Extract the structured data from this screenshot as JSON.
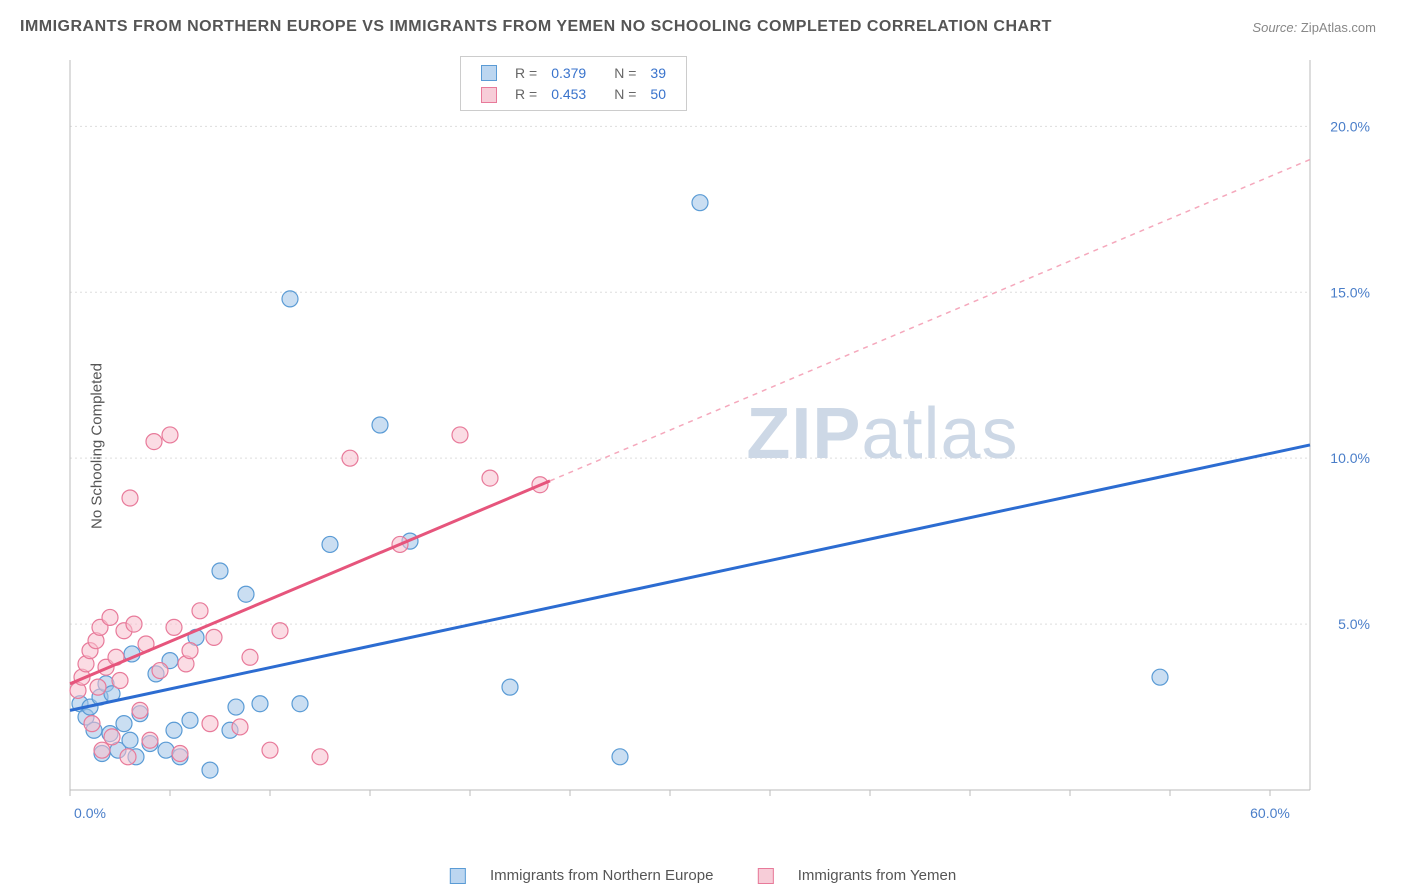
{
  "title": "IMMIGRANTS FROM NORTHERN EUROPE VS IMMIGRANTS FROM YEMEN NO SCHOOLING COMPLETED CORRELATION CHART",
  "source_label": "Source:",
  "source_value": "ZipAtlas.com",
  "y_axis_label": "No Schooling Completed",
  "watermark_a": "ZIP",
  "watermark_b": "atlas",
  "chart": {
    "type": "scatter",
    "xlim": [
      0,
      62
    ],
    "ylim": [
      0,
      22
    ],
    "x_ticks": [
      0,
      60
    ],
    "x_tick_labels": [
      "0.0%",
      "60.0%"
    ],
    "y_ticks": [
      5,
      10,
      15,
      20
    ],
    "y_tick_labels": [
      "5.0%",
      "10.0%",
      "15.0%",
      "20.0%"
    ],
    "grid_color": "#dddddd",
    "axis_color": "#bbbbbb",
    "background_color": "#ffffff",
    "tick_label_color": "#4a7ec9",
    "point_radius": 8,
    "series": [
      {
        "name": "Immigrants from Northern Europe",
        "point_fill": "#9ec3e8",
        "point_stroke": "#5a9bd5",
        "trend_color": "#2c6cd1",
        "R": "0.379",
        "N": "39",
        "trend": {
          "x1": 0,
          "y1": 2.4,
          "x2": 62,
          "y2": 10.4,
          "solid_until_x": 62
        },
        "points": [
          [
            0.5,
            2.6
          ],
          [
            0.8,
            2.2
          ],
          [
            1.0,
            2.5
          ],
          [
            1.2,
            1.8
          ],
          [
            1.5,
            2.8
          ],
          [
            1.6,
            1.1
          ],
          [
            1.8,
            3.2
          ],
          [
            2.0,
            1.7
          ],
          [
            2.1,
            2.9
          ],
          [
            2.4,
            1.2
          ],
          [
            2.7,
            2.0
          ],
          [
            3.0,
            1.5
          ],
          [
            3.1,
            4.1
          ],
          [
            3.3,
            1.0
          ],
          [
            3.5,
            2.3
          ],
          [
            4.0,
            1.4
          ],
          [
            4.3,
            3.5
          ],
          [
            4.8,
            1.2
          ],
          [
            5.0,
            3.9
          ],
          [
            5.2,
            1.8
          ],
          [
            5.5,
            1.0
          ],
          [
            6.0,
            2.1
          ],
          [
            6.3,
            4.6
          ],
          [
            7.0,
            0.6
          ],
          [
            7.5,
            6.6
          ],
          [
            8.0,
            1.8
          ],
          [
            8.3,
            2.5
          ],
          [
            8.8,
            5.9
          ],
          [
            9.5,
            2.6
          ],
          [
            11.0,
            14.8
          ],
          [
            11.5,
            2.6
          ],
          [
            13.0,
            7.4
          ],
          [
            15.5,
            11.0
          ],
          [
            17.0,
            7.5
          ],
          [
            22.0,
            3.1
          ],
          [
            27.5,
            1.0
          ],
          [
            31.5,
            17.7
          ],
          [
            54.5,
            3.4
          ]
        ]
      },
      {
        "name": "Immigrants from Yemen",
        "point_fill": "#f8c0cd",
        "point_stroke": "#e87a9a",
        "trend_color": "#e6557c",
        "trend_dash_color": "#f5a8bc",
        "R": "0.453",
        "N": "50",
        "trend": {
          "x1": 0,
          "y1": 3.2,
          "x2": 62,
          "y2": 19.0,
          "solid_until_x": 24
        },
        "points": [
          [
            0.4,
            3.0
          ],
          [
            0.6,
            3.4
          ],
          [
            0.8,
            3.8
          ],
          [
            1.0,
            4.2
          ],
          [
            1.1,
            2.0
          ],
          [
            1.3,
            4.5
          ],
          [
            1.4,
            3.1
          ],
          [
            1.5,
            4.9
          ],
          [
            1.6,
            1.2
          ],
          [
            1.8,
            3.7
          ],
          [
            2.0,
            5.2
          ],
          [
            2.1,
            1.6
          ],
          [
            2.3,
            4.0
          ],
          [
            2.5,
            3.3
          ],
          [
            2.7,
            4.8
          ],
          [
            2.9,
            1.0
          ],
          [
            3.0,
            8.8
          ],
          [
            3.2,
            5.0
          ],
          [
            3.5,
            2.4
          ],
          [
            3.8,
            4.4
          ],
          [
            4.0,
            1.5
          ],
          [
            4.2,
            10.5
          ],
          [
            4.5,
            3.6
          ],
          [
            5.0,
            10.7
          ],
          [
            5.2,
            4.9
          ],
          [
            5.5,
            1.1
          ],
          [
            5.8,
            3.8
          ],
          [
            6.0,
            4.2
          ],
          [
            6.5,
            5.4
          ],
          [
            7.0,
            2.0
          ],
          [
            7.2,
            4.6
          ],
          [
            8.5,
            1.9
          ],
          [
            9.0,
            4.0
          ],
          [
            10.0,
            1.2
          ],
          [
            10.5,
            4.8
          ],
          [
            12.5,
            1.0
          ],
          [
            14.0,
            10.0
          ],
          [
            16.5,
            7.4
          ],
          [
            19.5,
            10.7
          ],
          [
            21.0,
            9.4
          ],
          [
            23.5,
            9.2
          ]
        ]
      }
    ]
  },
  "top_legend": {
    "rows": [
      {
        "swatch": "blue",
        "r_label": "R =",
        "r_val": "0.379",
        "n_label": "N =",
        "n_val": "39"
      },
      {
        "swatch": "pink",
        "r_label": "R =",
        "r_val": "0.453",
        "n_label": "N =",
        "n_val": "50"
      }
    ]
  },
  "bottom_legend": {
    "items": [
      {
        "swatch": "blue",
        "label": "Immigrants from Northern Europe"
      },
      {
        "swatch": "pink",
        "label": "Immigrants from Yemen"
      }
    ]
  }
}
